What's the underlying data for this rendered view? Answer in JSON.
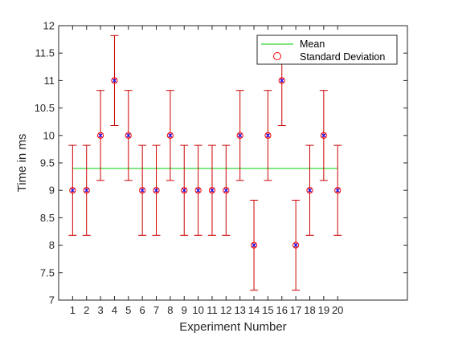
{
  "chart_data": {
    "type": "scatter",
    "title": "",
    "xlabel": "Experiment Number",
    "ylabel": "Time in ms",
    "x": [
      1,
      2,
      3,
      4,
      5,
      6,
      7,
      8,
      9,
      10,
      11,
      12,
      13,
      14,
      15,
      16,
      17,
      18,
      19,
      20
    ],
    "y": [
      9,
      9,
      10,
      11,
      10,
      9,
      9,
      10,
      9,
      9,
      9,
      9,
      10,
      8,
      10,
      11,
      8,
      9,
      10,
      9
    ],
    "error": [
      0.82,
      0.82,
      0.82,
      0.82,
      0.82,
      0.82,
      0.82,
      0.82,
      0.82,
      0.82,
      0.82,
      0.82,
      0.82,
      0.82,
      0.82,
      0.82,
      0.82,
      0.82,
      0.82,
      0.82
    ],
    "mean": 9.4,
    "xlim": [
      0,
      25
    ],
    "ylim": [
      7,
      12
    ],
    "xticks": [
      1,
      2,
      3,
      4,
      5,
      6,
      7,
      8,
      9,
      10,
      11,
      12,
      13,
      14,
      15,
      16,
      17,
      18,
      19,
      20
    ],
    "yticks": [
      "7",
      "7.5",
      "8",
      "8.5",
      "9",
      "9.5",
      "10",
      "10.5",
      "11",
      "11.5",
      "12"
    ],
    "grid": false,
    "legend": {
      "placement": "top-right",
      "entries": [
        {
          "label": "Mean",
          "marker": "line",
          "color": "#00cc00"
        },
        {
          "label": "Standard Deviation",
          "marker": "circle",
          "color": "#ff0000"
        }
      ]
    },
    "colors": {
      "mean_line": "#00cc00",
      "error_bar": "#cc0000",
      "marker_circle": "#ff0000",
      "marker_cross": "#0000ff"
    }
  }
}
